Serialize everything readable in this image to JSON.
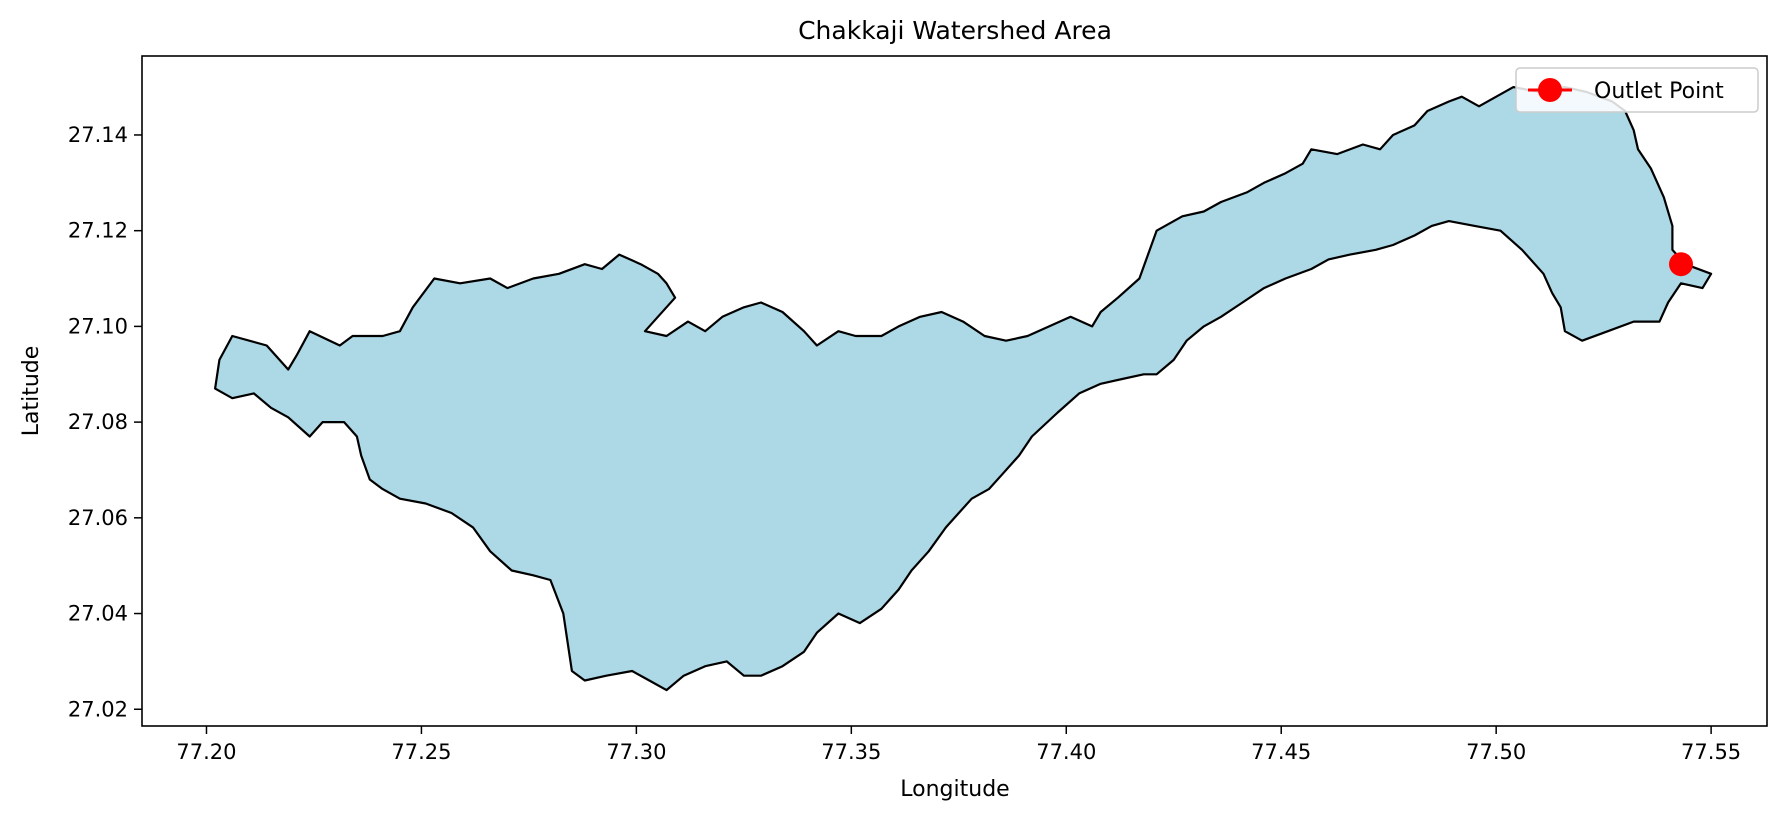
{
  "chart_data": {
    "type": "map",
    "title": "Chakkaji Watershed Area",
    "xlabel": "Longitude",
    "ylabel": "Latitude",
    "xlim": [
      77.185,
      77.563
    ],
    "ylim": [
      27.0165,
      27.1565
    ],
    "x_ticks": [
      77.2,
      77.25,
      77.3,
      77.35,
      77.4,
      77.45,
      77.5,
      77.55
    ],
    "x_tick_labels": [
      "77.20",
      "77.25",
      "77.30",
      "77.35",
      "77.40",
      "77.45",
      "77.50",
      "77.55"
    ],
    "y_ticks": [
      27.02,
      27.04,
      27.06,
      27.08,
      27.1,
      27.12,
      27.14
    ],
    "y_tick_labels": [
      "27.02",
      "27.04",
      "27.06",
      "27.08",
      "27.10",
      "27.12",
      "27.14"
    ],
    "grid": false,
    "legend_position": "top-right",
    "watershed": {
      "fill": "#add8e6",
      "edge": "#000000",
      "boundary": [
        [
          77.203,
          27.093
        ],
        [
          77.206,
          27.098
        ],
        [
          77.214,
          27.096
        ],
        [
          77.219,
          27.091
        ],
        [
          77.221,
          27.094
        ],
        [
          77.224,
          27.099
        ],
        [
          77.231,
          27.096
        ],
        [
          77.234,
          27.098
        ],
        [
          77.241,
          27.098
        ],
        [
          77.245,
          27.099
        ],
        [
          77.248,
          27.104
        ],
        [
          77.253,
          27.11
        ],
        [
          77.259,
          27.109
        ],
        [
          77.266,
          27.11
        ],
        [
          77.27,
          27.108
        ],
        [
          77.276,
          27.11
        ],
        [
          77.282,
          27.111
        ],
        [
          77.288,
          27.113
        ],
        [
          77.292,
          27.112
        ],
        [
          77.296,
          27.115
        ],
        [
          77.301,
          27.113
        ],
        [
          77.305,
          27.111
        ],
        [
          77.307,
          27.109
        ],
        [
          77.309,
          27.106
        ],
        [
          77.305,
          27.102
        ],
        [
          77.302,
          27.099
        ],
        [
          77.307,
          27.098
        ],
        [
          77.312,
          27.101
        ],
        [
          77.316,
          27.099
        ],
        [
          77.32,
          27.102
        ],
        [
          77.325,
          27.104
        ],
        [
          77.329,
          27.105
        ],
        [
          77.334,
          27.103
        ],
        [
          77.339,
          27.099
        ],
        [
          77.342,
          27.096
        ],
        [
          77.347,
          27.099
        ],
        [
          77.351,
          27.098
        ],
        [
          77.357,
          27.098
        ],
        [
          77.361,
          27.1
        ],
        [
          77.366,
          27.102
        ],
        [
          77.371,
          27.103
        ],
        [
          77.376,
          27.101
        ],
        [
          77.381,
          27.098
        ],
        [
          77.386,
          27.097
        ],
        [
          77.391,
          27.098
        ],
        [
          77.396,
          27.1
        ],
        [
          77.401,
          27.102
        ],
        [
          77.406,
          27.1
        ],
        [
          77.408,
          27.103
        ],
        [
          77.412,
          27.106
        ],
        [
          77.417,
          27.11
        ],
        [
          77.419,
          27.115
        ],
        [
          77.421,
          27.12
        ],
        [
          77.427,
          27.123
        ],
        [
          77.432,
          27.124
        ],
        [
          77.436,
          27.126
        ],
        [
          77.442,
          27.128
        ],
        [
          77.446,
          27.13
        ],
        [
          77.451,
          27.132
        ],
        [
          77.455,
          27.134
        ],
        [
          77.457,
          27.137
        ],
        [
          77.463,
          27.136
        ],
        [
          77.469,
          27.138
        ],
        [
          77.473,
          27.137
        ],
        [
          77.476,
          27.14
        ],
        [
          77.481,
          27.142
        ],
        [
          77.484,
          27.145
        ],
        [
          77.489,
          27.147
        ],
        [
          77.492,
          27.148
        ],
        [
          77.496,
          27.146
        ],
        [
          77.5,
          27.148
        ],
        [
          77.504,
          27.15
        ],
        [
          77.51,
          27.149
        ],
        [
          77.516,
          27.15
        ],
        [
          77.521,
          27.149
        ],
        [
          77.527,
          27.147
        ],
        [
          77.53,
          27.145
        ],
        [
          77.532,
          27.141
        ],
        [
          77.533,
          27.137
        ],
        [
          77.536,
          27.133
        ],
        [
          77.539,
          27.127
        ],
        [
          77.541,
          27.121
        ],
        [
          77.541,
          27.116
        ],
        [
          77.544,
          27.113
        ],
        [
          77.55,
          27.111
        ],
        [
          77.548,
          27.108
        ],
        [
          77.543,
          27.109
        ],
        [
          77.54,
          27.105
        ],
        [
          77.538,
          27.101
        ],
        [
          77.532,
          27.101
        ],
        [
          77.526,
          27.099
        ],
        [
          77.52,
          27.097
        ],
        [
          77.516,
          27.099
        ],
        [
          77.515,
          27.104
        ],
        [
          77.513,
          27.107
        ],
        [
          77.511,
          27.111
        ],
        [
          77.506,
          27.116
        ],
        [
          77.501,
          27.12
        ],
        [
          77.495,
          27.121
        ],
        [
          77.489,
          27.122
        ],
        [
          77.485,
          27.121
        ],
        [
          77.481,
          27.119
        ],
        [
          77.476,
          27.117
        ],
        [
          77.472,
          27.116
        ],
        [
          77.466,
          27.115
        ],
        [
          77.461,
          27.114
        ],
        [
          77.457,
          27.112
        ],
        [
          77.451,
          27.11
        ],
        [
          77.446,
          27.108
        ],
        [
          77.441,
          27.105
        ],
        [
          77.436,
          27.102
        ],
        [
          77.432,
          27.1
        ],
        [
          77.428,
          27.097
        ],
        [
          77.425,
          27.093
        ],
        [
          77.421,
          27.09
        ],
        [
          77.418,
          27.09
        ],
        [
          77.413,
          27.089
        ],
        [
          77.408,
          27.088
        ],
        [
          77.403,
          27.086
        ],
        [
          77.398,
          27.082
        ],
        [
          77.392,
          27.077
        ],
        [
          77.389,
          27.073
        ],
        [
          77.385,
          27.069
        ],
        [
          77.382,
          27.066
        ],
        [
          77.378,
          27.064
        ],
        [
          77.375,
          27.061
        ],
        [
          77.372,
          27.058
        ],
        [
          77.368,
          27.053
        ],
        [
          77.364,
          27.049
        ],
        [
          77.361,
          27.045
        ],
        [
          77.357,
          27.041
        ],
        [
          77.352,
          27.038
        ],
        [
          77.347,
          27.04
        ],
        [
          77.342,
          27.036
        ],
        [
          77.339,
          27.032
        ],
        [
          77.334,
          27.029
        ],
        [
          77.329,
          27.027
        ],
        [
          77.325,
          27.027
        ],
        [
          77.321,
          27.03
        ],
        [
          77.316,
          27.029
        ],
        [
          77.311,
          27.027
        ],
        [
          77.307,
          27.024
        ],
        [
          77.303,
          27.026
        ],
        [
          77.299,
          27.028
        ],
        [
          77.293,
          27.027
        ],
        [
          77.288,
          27.026
        ],
        [
          77.285,
          27.028
        ],
        [
          77.284,
          27.034
        ],
        [
          77.283,
          27.04
        ],
        [
          77.28,
          27.047
        ],
        [
          77.276,
          27.048
        ],
        [
          77.271,
          27.049
        ],
        [
          77.266,
          27.053
        ],
        [
          77.262,
          27.058
        ],
        [
          77.257,
          27.061
        ],
        [
          77.251,
          27.063
        ],
        [
          77.245,
          27.064
        ],
        [
          77.241,
          27.066
        ],
        [
          77.238,
          27.068
        ],
        [
          77.236,
          27.073
        ],
        [
          77.235,
          27.077
        ],
        [
          77.232,
          27.08
        ],
        [
          77.227,
          27.08
        ],
        [
          77.224,
          27.077
        ],
        [
          77.219,
          27.081
        ],
        [
          77.215,
          27.083
        ],
        [
          77.211,
          27.086
        ],
        [
          77.206,
          27.085
        ],
        [
          77.202,
          27.087
        ]
      ]
    },
    "outlet": {
      "label": "Outlet Point",
      "lon": 77.543,
      "lat": 27.113,
      "color": "#ff0000"
    }
  }
}
